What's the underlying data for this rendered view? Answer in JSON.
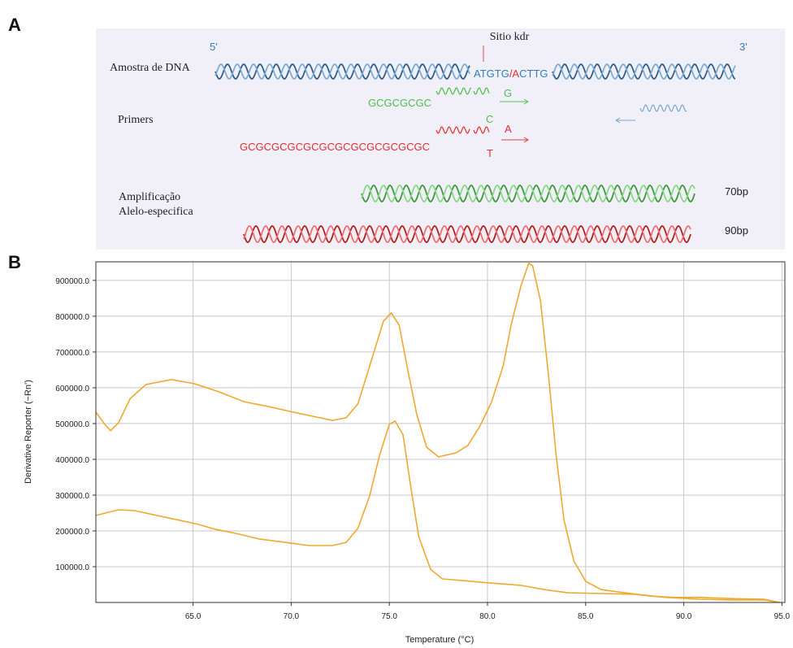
{
  "diagram": {
    "label": "A",
    "strand_5": "5'",
    "strand_3": "3'",
    "site": "Sitio kdr",
    "sample_label": "Amostra de DNA",
    "sequence": [
      "ATGTG",
      "/A",
      "CTTG"
    ],
    "primers": {
      "label": "Primers",
      "green_tail": "GCGCGCGC",
      "green_base": "G",
      "green_alt": "C",
      "red_tail": "GCGCGCGCGCGCGCGCGCGCGCGC",
      "red_base": "A",
      "red_alt": "T"
    },
    "amplification": {
      "label": [
        "Amplificação",
        "Alelo-especifica"
      ],
      "sizes": [
        "70bp",
        "90bp"
      ]
    }
  },
  "chart_data": {
    "type": "line",
    "panel_label": "B",
    "x_label": "Temperature (°C)",
    "y_label": "Derivative Reporter (−Rn')",
    "xlim": [
      60.05,
      95.15
    ],
    "ylim": [
      0,
      952000
    ],
    "xticks": [
      {
        "value": 65,
        "label": "65.0"
      },
      {
        "value": 70,
        "label": "70.0"
      },
      {
        "value": 75,
        "label": "75.0"
      },
      {
        "value": 80,
        "label": "80.0"
      },
      {
        "value": 85,
        "label": "85.0"
      },
      {
        "value": 90,
        "label": "90.0"
      },
      {
        "value": 95,
        "label": "95.0"
      }
    ],
    "yticks": [
      {
        "value": 100000,
        "label": "100000.0"
      },
      {
        "value": 200000,
        "label": "200000.0"
      },
      {
        "value": 300000,
        "label": "300000.0"
      },
      {
        "value": 400000,
        "label": "400000.0"
      },
      {
        "value": 500000,
        "label": "500000.0"
      },
      {
        "value": 600000,
        "label": "600000.0"
      },
      {
        "value": 700000,
        "label": "700000.0"
      },
      {
        "value": 800000,
        "label": "800000.0"
      },
      {
        "value": 900000,
        "label": "900000.0"
      }
    ],
    "grid": true,
    "series": [
      {
        "color": "#f0a830",
        "x": [
          60.05,
          60.5,
          60.8,
          61.2,
          61.8,
          62.6,
          63.9,
          65.1,
          66.3,
          67.6,
          68.8,
          70.1,
          71.3,
          72.1,
          72.8,
          73.4,
          74.0,
          74.7,
          75.1,
          75.5,
          75.9,
          76.4,
          76.9,
          77.5,
          78.4,
          79.0,
          79.6,
          80.2,
          80.8,
          81.2,
          81.7,
          82.1,
          82.3,
          82.7,
          83.1,
          83.5,
          83.9,
          84.4,
          85.0,
          85.8,
          87.0,
          88.3,
          89.5,
          90.8,
          92.4,
          94.1,
          94.9
        ],
        "values": [
          532000,
          498000,
          480000,
          502000,
          570000,
          609000,
          623000,
          611000,
          589000,
          561000,
          548000,
          532000,
          518000,
          509000,
          516000,
          555000,
          661000,
          786000,
          809000,
          775000,
          661000,
          525000,
          434000,
          407000,
          418000,
          439000,
          491000,
          559000,
          661000,
          775000,
          884000,
          948000,
          941000,
          843000,
          639000,
          411000,
          230000,
          116000,
          59000,
          36000,
          27000,
          18000,
          14000,
          14000,
          11000,
          9000,
          0
        ]
      },
      {
        "color": "#f0a830",
        "x": [
          60.05,
          61.2,
          62.0,
          63.0,
          64.3,
          65.3,
          66.1,
          67.2,
          68.4,
          69.7,
          70.9,
          72.1,
          72.8,
          73.4,
          74.0,
          74.5,
          75.0,
          75.3,
          75.7,
          76.1,
          76.5,
          77.1,
          77.7,
          78.8,
          80.0,
          81.7,
          82.9,
          84.1,
          85.8,
          87.5,
          89.1,
          90.8,
          92.4,
          94.1,
          94.9
        ],
        "values": [
          243000,
          259000,
          257000,
          245000,
          230000,
          218000,
          205000,
          193000,
          177000,
          168000,
          159000,
          159000,
          168000,
          207000,
          298000,
          411000,
          498000,
          507000,
          468000,
          320000,
          184000,
          93000,
          66000,
          61000,
          55000,
          48000,
          36000,
          27000,
          25000,
          23000,
          14000,
          9000,
          7000,
          7000,
          0
        ]
      }
    ]
  }
}
